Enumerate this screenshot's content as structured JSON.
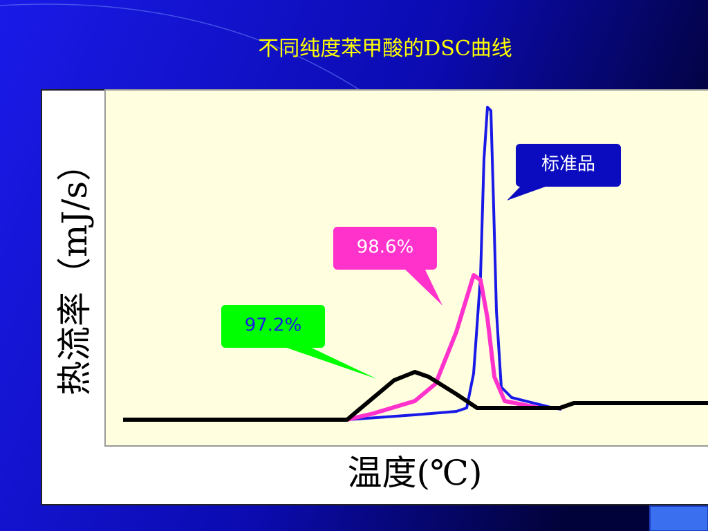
{
  "title": "不同纯度苯甲酸的DSC曲线",
  "y_axis_label": "热流率（mJ/s）",
  "x_axis_label": "温度(℃)",
  "callouts": [
    {
      "label": "标准品"
    },
    {
      "label": "98.6%"
    },
    {
      "label": "97.2%"
    }
  ]
}
